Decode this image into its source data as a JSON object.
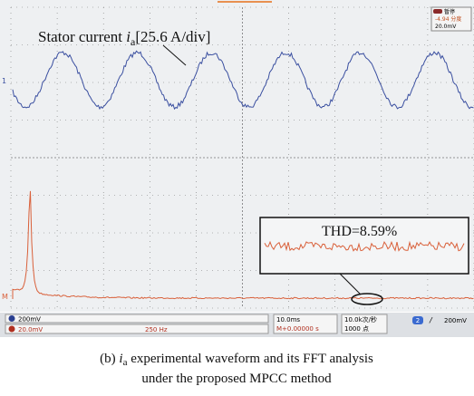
{
  "screen": {
    "trace_label": {
      "prefix": "Stator current ",
      "symbol": "i",
      "subscript": "a",
      "suffix": "[25.6 A/div]"
    },
    "thd": "THD=8.59%",
    "channel_markers": [
      "1",
      "M"
    ],
    "status_box": {
      "line1": "暂停",
      "line2": "-4.94 分度",
      "line3": "20.0mV"
    }
  },
  "bottom_bar": {
    "ch1": "200mV",
    "math_scale": "20.0mV",
    "math_freq": "250 Hz",
    "timebase": "10.0ms",
    "position": "M+0.00000 s",
    "rate": "10.0k次/秒",
    "points": "1000 点",
    "trigger_channel": "2",
    "trigger_level": "200mV"
  },
  "caption": {
    "line1_prefix": "(b) ",
    "symbol": "i",
    "subscript": "a",
    "line1_suffix": " experimental waveform and its FFT analysis",
    "line2": "under the proposed MPCC method"
  }
}
